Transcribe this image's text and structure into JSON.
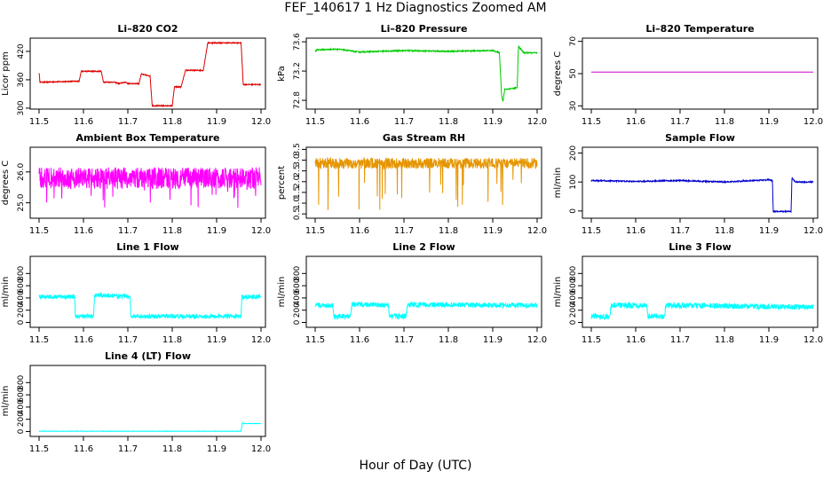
{
  "figure": {
    "title": "FEF_140617  1 Hz Diagnostics Zoomed AM",
    "xlabel": "Hour of Day (UTC)"
  },
  "chart_data": [
    {
      "type": "line",
      "title": "Li–820 CO2",
      "ylabel": "Licor ppm",
      "color": "#dd0000",
      "xlim": [
        11.48,
        12.01
      ],
      "xticks": [
        "11.5",
        "11.6",
        "11.7",
        "11.8",
        "11.9",
        "12.0"
      ],
      "ylim": [
        298,
        448
      ],
      "yticks": [
        "300",
        "360",
        "420"
      ],
      "noise": 1,
      "series": [
        {
          "x": [
            11.5,
            11.502,
            11.51,
            11.59,
            11.595,
            11.64,
            11.645,
            11.67,
            11.68,
            11.695,
            11.7,
            11.725,
            11.73,
            11.75,
            11.755,
            11.8,
            11.805,
            11.82,
            11.83,
            11.87,
            11.88,
            11.955,
            11.96,
            12.0
          ],
          "y": [
            375,
            355,
            355,
            357,
            378,
            378,
            355,
            355,
            352,
            355,
            352,
            352,
            372,
            368,
            305,
            305,
            345,
            345,
            380,
            380,
            438,
            438,
            350,
            350
          ]
        }
      ]
    },
    {
      "type": "line",
      "title": "Li–820 Pressure",
      "ylabel": "kPa",
      "color": "#00cc00",
      "xlim": [
        11.48,
        12.01
      ],
      "xticks": [
        "11.5",
        "11.6",
        "11.7",
        "11.8",
        "11.9",
        "12.0"
      ],
      "ylim": [
        72.68,
        73.65
      ],
      "yticks": [
        "72.8",
        "73.2",
        "73.6"
      ],
      "noise": 0.008,
      "series": [
        {
          "x": [
            11.5,
            11.505,
            11.55,
            11.6,
            11.7,
            11.8,
            11.9,
            11.915,
            11.92,
            11.923,
            11.927,
            11.955,
            11.958,
            11.96,
            11.97,
            12.0
          ],
          "y": [
            73.47,
            73.49,
            73.5,
            73.46,
            73.48,
            73.47,
            73.48,
            73.45,
            72.87,
            72.78,
            72.95,
            72.97,
            73.55,
            73.52,
            73.45,
            73.45
          ]
        }
      ]
    },
    {
      "type": "line",
      "title": "Li–820 Temperature",
      "ylabel": "degrees C",
      "color": "#cc00cc",
      "xlim": [
        11.48,
        12.01
      ],
      "xticks": [
        "11.5",
        "11.6",
        "11.7",
        "11.8",
        "11.9",
        "12.0"
      ],
      "ylim": [
        28,
        72
      ],
      "yticks": [
        "30",
        "50",
        "70"
      ],
      "noise": 0,
      "series": [
        {
          "x": [
            11.5,
            12.0
          ],
          "y": [
            51,
            51
          ]
        }
      ]
    },
    {
      "type": "line",
      "title": "Ambient Box Temperature",
      "ylabel": "degrees C",
      "color": "#ff00ff",
      "xlim": [
        11.48,
        12.01
      ],
      "xticks": [
        "11.5",
        "11.6",
        "11.7",
        "11.8",
        "11.9",
        "12.0"
      ],
      "ylim": [
        24.5,
        26.8
      ],
      "yticks": [
        "25.0",
        "26.0"
      ],
      "noise": 0.35,
      "spikes": -0.7,
      "series": [
        {
          "x": [
            11.5,
            12.0
          ],
          "y": [
            25.8,
            25.8
          ]
        }
      ]
    },
    {
      "type": "line",
      "title": "Gas Stream RH",
      "ylabel": "percent",
      "color": "#e69500",
      "xlim": [
        11.48,
        12.01
      ],
      "xticks": [
        "11.5",
        "11.6",
        "11.7",
        "11.8",
        "11.9",
        "12.0"
      ],
      "ylim": [
        0.3,
        3.6
      ],
      "yticks": [
        "0.5",
        "1.0",
        "1.5",
        "2.0",
        "2.5",
        "3.0",
        "3.5"
      ],
      "noise": 0.25,
      "spikes": -2.2,
      "series": [
        {
          "x": [
            11.5,
            12.0
          ],
          "y": [
            2.85,
            2.85
          ]
        }
      ]
    },
    {
      "type": "line",
      "title": "Sample Flow",
      "ylabel": "ml/min",
      "color": "#0000cc",
      "xlim": [
        11.48,
        12.01
      ],
      "xticks": [
        "11.5",
        "11.6",
        "11.7",
        "11.8",
        "11.9",
        "12.0"
      ],
      "ylim": [
        -25,
        220
      ],
      "yticks": [
        "0",
        "100",
        "200"
      ],
      "noise": 2,
      "series": [
        {
          "x": [
            11.5,
            11.6,
            11.7,
            11.8,
            11.9,
            11.908,
            11.91,
            11.95,
            11.952,
            11.955,
            11.96,
            12.0
          ],
          "y": [
            105,
            102,
            105,
            100,
            108,
            105,
            -2,
            -2,
            115,
            108,
            100,
            100
          ]
        }
      ]
    },
    {
      "type": "line",
      "title": "Line 1 Flow",
      "ylabel": "ml/min",
      "color": "#00ffff",
      "xlim": [
        11.48,
        12.01
      ],
      "xticks": [
        "11.5",
        "11.6",
        "11.7",
        "11.8",
        "11.9",
        "12.0"
      ],
      "ylim": [
        -80,
        1080
      ],
      "yticks": [
        "0",
        "200",
        "400",
        "600",
        "800"
      ],
      "noise": 35,
      "series": [
        {
          "x": [
            11.5,
            11.502,
            11.58,
            11.582,
            11.623,
            11.625,
            11.705,
            11.707,
            11.955,
            11.957,
            12.0
          ],
          "y": [
            420,
            420,
            420,
            100,
            100,
            450,
            420,
            100,
            100,
            420,
            420
          ]
        }
      ]
    },
    {
      "type": "line",
      "title": "Line 2 Flow",
      "ylabel": "ml/min",
      "color": "#00ffff",
      "xlim": [
        11.48,
        12.01
      ],
      "xticks": [
        "11.5",
        "11.6",
        "11.7",
        "11.8",
        "11.9",
        "12.0"
      ],
      "ylim": [
        -80,
        1080
      ],
      "yticks": [
        "0",
        "200",
        "400",
        "600",
        "800"
      ],
      "noise": 40,
      "series": [
        {
          "x": [
            11.5,
            11.502,
            11.54,
            11.542,
            11.58,
            11.583,
            11.665,
            11.667,
            11.705,
            11.708,
            12.0
          ],
          "y": [
            280,
            280,
            280,
            100,
            100,
            300,
            280,
            100,
            100,
            290,
            280
          ]
        }
      ]
    },
    {
      "type": "line",
      "title": "Line 3 Flow",
      "ylabel": "ml/min",
      "color": "#00ffff",
      "xlim": [
        11.48,
        12.01
      ],
      "xticks": [
        "11.5",
        "11.6",
        "11.7",
        "11.8",
        "11.9",
        "12.0"
      ],
      "ylim": [
        -80,
        1080
      ],
      "yticks": [
        "0",
        "200",
        "400",
        "600",
        "800"
      ],
      "noise": 45,
      "series": [
        {
          "x": [
            11.5,
            11.542,
            11.545,
            11.625,
            11.628,
            11.665,
            11.668,
            12.0
          ],
          "y": [
            100,
            100,
            280,
            280,
            100,
            100,
            280,
            250
          ]
        }
      ]
    },
    {
      "type": "line",
      "title": "Line 4 (LT) Flow",
      "ylabel": "ml/min",
      "color": "#00ffff",
      "xlim": [
        11.48,
        12.01
      ],
      "xticks": [
        "11.5",
        "11.6",
        "11.7",
        "11.8",
        "11.9",
        "12.0"
      ],
      "ylim": [
        -80,
        1080
      ],
      "yticks": [
        "0",
        "200",
        "400",
        "600",
        "800"
      ],
      "noise": 3,
      "series": [
        {
          "x": [
            11.5,
            11.955,
            11.958,
            11.96,
            12.0
          ],
          "y": [
            5,
            5,
            150,
            130,
            130
          ]
        }
      ]
    }
  ]
}
